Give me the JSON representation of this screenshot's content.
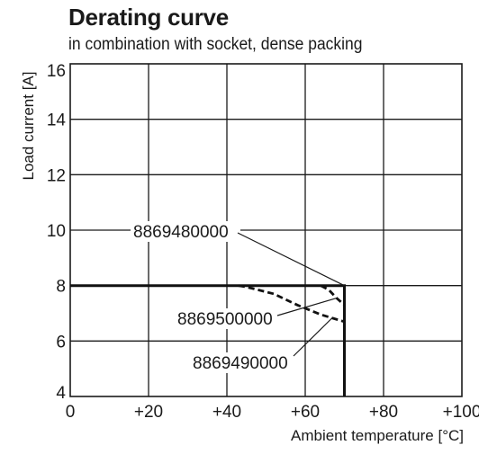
{
  "chart_data": {
    "type": "line",
    "title": "Derating curve",
    "subtitle": "in combination with socket, dense packing",
    "xlabel": "Ambient temperature [°C]",
    "ylabel": "Load current [A]",
    "xlim": [
      0,
      100
    ],
    "ylim": [
      4,
      16
    ],
    "x_ticks": [
      0,
      20,
      40,
      60,
      80,
      100
    ],
    "x_tick_labels": [
      "0",
      "+20",
      "+40",
      "+60",
      "+80",
      "+100"
    ],
    "y_ticks": [
      4,
      6,
      8,
      10,
      12,
      14,
      16
    ],
    "y_tick_labels": [
      "4",
      "6",
      "8",
      "10",
      "12",
      "14",
      "16"
    ],
    "grid": true,
    "series": [
      {
        "name": "8869480000",
        "style": "solid",
        "points": [
          [
            0,
            8
          ],
          [
            70,
            8
          ],
          [
            70,
            4
          ]
        ]
      },
      {
        "name": "8869500000",
        "style": "dashed",
        "points": [
          [
            43,
            8
          ],
          [
            45,
            7.95
          ],
          [
            52,
            7.7
          ],
          [
            58,
            7.3
          ],
          [
            64,
            6.95
          ],
          [
            70,
            6.7
          ]
        ]
      },
      {
        "name": "8869490000",
        "style": "dashed",
        "points": [
          [
            64,
            8
          ],
          [
            66,
            7.85
          ],
          [
            68,
            7.55
          ],
          [
            70,
            7.3
          ]
        ]
      }
    ],
    "annotations": [
      {
        "text": "8869480000",
        "target": [
          70,
          8
        ]
      },
      {
        "text": "8869500000",
        "target": [
          68,
          7.55
        ]
      },
      {
        "text": "8869490000",
        "target": [
          67,
          6.85
        ]
      }
    ]
  }
}
